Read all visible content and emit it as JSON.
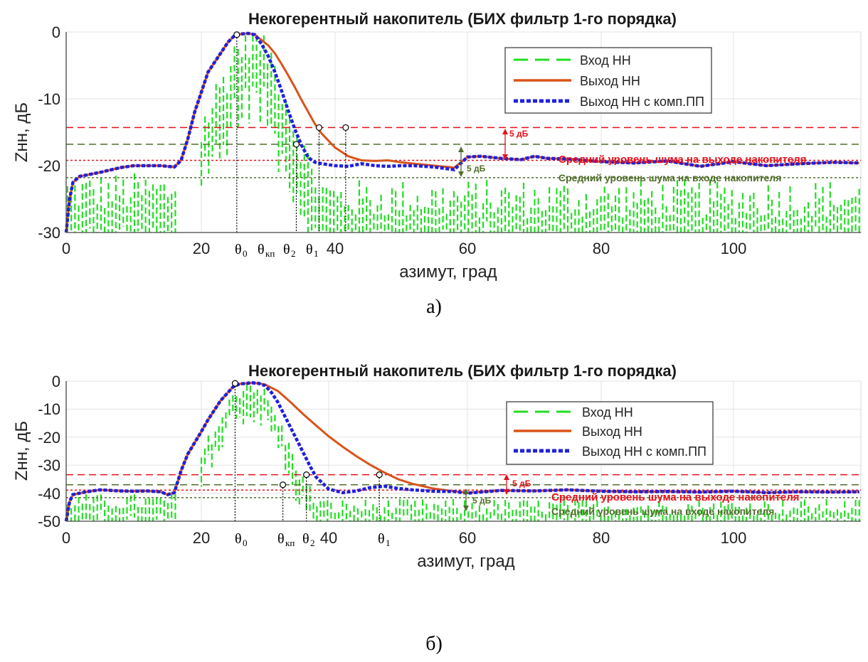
{
  "chart_data": [
    {
      "type": "line",
      "panel": "a)",
      "title": "Некогерентный накопитель (БИХ фильтр 1-го порядка)",
      "xlabel": "азимут, град",
      "ylabel": "Zнн, дБ",
      "xlim": [
        0,
        119
      ],
      "ylim": [
        -30,
        0
      ],
      "xticks": [
        0,
        20,
        40,
        60,
        80,
        100
      ],
      "xtick_labels": [
        "0",
        "20",
        "40",
        "60",
        "80",
        "100"
      ],
      "yticks": [
        0,
        -10,
        -20,
        -30
      ],
      "ytick_labels": [
        "0",
        "-10",
        "-20",
        "-30"
      ],
      "grid": true,
      "legend_position": "top-right",
      "series": [
        {
          "name": "Вход НН",
          "style": "dashed",
          "color": "#22dd22",
          "description_points_x": [
            0,
            5,
            10,
            15,
            17,
            18,
            20,
            22,
            24,
            25,
            27,
            28,
            30,
            32,
            34,
            36,
            38,
            40,
            45,
            50,
            55,
            60,
            70,
            80,
            90,
            100,
            110,
            119
          ],
          "description_points_y": [
            -24,
            -24,
            -24,
            -24,
            -23,
            -17,
            -15,
            -10,
            -6,
            -3,
            -1,
            -0.5,
            -3,
            -8,
            -14,
            -20,
            -24,
            -25,
            -25,
            -25,
            -25,
            -25,
            -25,
            -25,
            -25,
            -25,
            -25,
            -25
          ]
        },
        {
          "name": "Выход НН",
          "style": "solid",
          "color": "#d95319",
          "x": [
            0,
            0.5,
            1,
            2,
            3,
            5,
            8,
            10,
            12,
            14,
            16,
            17,
            18,
            19,
            20,
            21,
            22,
            23,
            24,
            25,
            26,
            27,
            28,
            29,
            30,
            31,
            32,
            33,
            34,
            35,
            36,
            37,
            38,
            40,
            42,
            44,
            46,
            48,
            50,
            52,
            55,
            58,
            60,
            62,
            65,
            68,
            70,
            72,
            75,
            80,
            85,
            90,
            95,
            100,
            105,
            110,
            115,
            119
          ],
          "y": [
            -30,
            -25,
            -22.5,
            -21.6,
            -21.4,
            -21,
            -20.3,
            -20,
            -20,
            -20,
            -20.2,
            -19.2,
            -16,
            -12,
            -9,
            -6,
            -4.5,
            -3,
            -1.5,
            -0.5,
            -0.3,
            -0.2,
            -0.4,
            -1.2,
            -2,
            -3.2,
            -4.8,
            -6.5,
            -8.3,
            -10.2,
            -12,
            -13.8,
            -15.2,
            -17.3,
            -18.6,
            -19.2,
            -19.3,
            -19.2,
            -19.5,
            -19.7,
            -20,
            -20.3,
            -18.7,
            -18.6,
            -18.9,
            -19.1,
            -18.6,
            -18.9,
            -19,
            -19.4,
            -19.6,
            -19.3,
            -20.1,
            -19.4,
            -20,
            -19.7,
            -19.5,
            -19.6
          ]
        },
        {
          "name": "Выход НН с комп.ПП",
          "style": "dotted",
          "color": "#1f1fe0",
          "x": [
            0,
            0.5,
            1,
            2,
            3,
            5,
            8,
            10,
            12,
            14,
            16,
            17,
            18,
            19,
            20,
            21,
            22,
            23,
            24,
            25,
            26,
            27,
            28,
            29,
            30,
            31,
            32,
            33,
            34,
            35,
            36,
            37,
            38,
            40,
            42,
            44,
            46,
            48,
            50,
            52,
            55,
            58,
            60,
            62,
            65,
            68,
            70,
            72,
            75,
            80,
            85,
            90,
            95,
            100,
            105,
            110,
            115,
            119
          ],
          "y": [
            -30,
            -25,
            -22.5,
            -21.6,
            -21.4,
            -21,
            -20.3,
            -20,
            -20,
            -20,
            -20.2,
            -19.2,
            -16,
            -12,
            -9,
            -6,
            -4.5,
            -3,
            -1.5,
            -0.5,
            -0.3,
            -0.2,
            -0.4,
            -1.8,
            -3.6,
            -6,
            -8.8,
            -11.8,
            -14.6,
            -17,
            -18.8,
            -19.5,
            -19.7,
            -20,
            -20.1,
            -19.7,
            -20,
            -20.1,
            -20,
            -20,
            -20.2,
            -20.6,
            -18.7,
            -18.6,
            -18.9,
            -19.1,
            -18.6,
            -18.9,
            -19,
            -19.4,
            -19.6,
            -19.3,
            -20.1,
            -19.4,
            -20,
            -19.7,
            -19.5,
            -19.6
          ]
        }
      ],
      "reference_lines": [
        {
          "y": -14.3,
          "style": "dashed",
          "color": "#e8101a"
        },
        {
          "y": -16.8,
          "style": "dashed",
          "color": "#4f6d2a"
        },
        {
          "y": -19.2,
          "style": "dotted",
          "color": "#e8101a"
        },
        {
          "y": -21.8,
          "style": "dotted",
          "color": "#4f6d2a"
        }
      ],
      "annotations": {
        "output_noise": "Средний уровень шума на выходе накопителя",
        "input_noise": "Средний уровень шума на входе накопителя",
        "db5_red": "5 дБ",
        "db5_olive": "5 дБ"
      },
      "markers": [
        {
          "label": "θ0",
          "x": 25.3,
          "y": -0.4
        },
        {
          "label": "θкп",
          "x": 34.2,
          "y": -16.8
        },
        {
          "label": "θ2",
          "x": 37.6,
          "y": -14.3
        },
        {
          "label": "θ1",
          "x": 41.6,
          "y": -14.3
        }
      ]
    },
    {
      "type": "line",
      "panel": "б)",
      "title": "Некогерентный накопитель (БИХ фильтр 1-го порядка)",
      "xlabel": "азимут, град",
      "ylabel": "Zнн, дБ",
      "xlim": [
        0,
        119
      ],
      "ylim": [
        -50,
        0
      ],
      "xticks": [
        0,
        20,
        40,
        60,
        80,
        100
      ],
      "xtick_labels": [
        "0",
        "20",
        "40",
        "60",
        "80",
        "100"
      ],
      "yticks": [
        0,
        -10,
        -20,
        -30,
        -40,
        -50
      ],
      "ytick_labels": [
        "0",
        "-10",
        "-20",
        "-30",
        "-40",
        "-50"
      ],
      "grid": true,
      "legend_position": "top-right",
      "series": [
        {
          "name": "Вход НН",
          "style": "dashed",
          "color": "#22dd22"
        },
        {
          "name": "Выход НН",
          "style": "solid",
          "color": "#d95319",
          "x": [
            0,
            0.5,
            1,
            2,
            3,
            5,
            8,
            10,
            12,
            14,
            15,
            16,
            17,
            18,
            19,
            20,
            21,
            22,
            23,
            24,
            25,
            26,
            27,
            28,
            29,
            30,
            32,
            34,
            36,
            38,
            40,
            42,
            44,
            46,
            48,
            50,
            52,
            55,
            58,
            60,
            65,
            70,
            75,
            80,
            85,
            90,
            95,
            100,
            105,
            110,
            115,
            119
          ],
          "y": [
            -50,
            -43,
            -40.5,
            -40,
            -39.5,
            -38.8,
            -39.2,
            -39.3,
            -39.2,
            -39.5,
            -40.5,
            -39.8,
            -32,
            -26,
            -22,
            -18,
            -14,
            -10.5,
            -7,
            -4.5,
            -2,
            -1,
            -0.8,
            -0.6,
            -0.8,
            -1.2,
            -3.5,
            -7.5,
            -11.8,
            -15.8,
            -19.7,
            -23.4,
            -26.8,
            -29.9,
            -32.6,
            -35,
            -36.6,
            -38.3,
            -39.3,
            -39.8,
            -39,
            -39.2,
            -38.8,
            -39.3,
            -39.5,
            -39.4,
            -39.6,
            -39.3,
            -39.8,
            -39.5,
            -39.6,
            -39.5
          ]
        },
        {
          "name": "Выход НН с комп.ПП",
          "style": "dotted",
          "color": "#1f1fe0",
          "x": [
            0,
            0.5,
            1,
            2,
            3,
            5,
            8,
            10,
            12,
            14,
            15,
            16,
            17,
            18,
            19,
            20,
            21,
            22,
            23,
            24,
            25,
            26,
            27,
            28,
            29,
            30,
            31,
            32,
            33,
            34,
            35,
            36,
            37,
            38,
            40,
            42,
            44,
            46,
            48,
            50,
            52,
            55,
            58,
            60,
            65,
            70,
            75,
            80,
            85,
            90,
            95,
            100,
            105,
            110,
            115,
            119
          ],
          "y": [
            -50,
            -43,
            -40.5,
            -40,
            -39.5,
            -38.8,
            -39.2,
            -39.3,
            -39.2,
            -39.5,
            -40.5,
            -39.8,
            -32,
            -26,
            -22,
            -18,
            -14,
            -10.5,
            -7,
            -4.5,
            -2,
            -1,
            -0.8,
            -0.6,
            -0.8,
            -1.6,
            -4,
            -7.5,
            -12,
            -16.5,
            -21,
            -25.5,
            -30,
            -34.2,
            -38.5,
            -39.8,
            -39.2,
            -38,
            -37.5,
            -38.3,
            -38.8,
            -39.3,
            -39.4,
            -40,
            -39,
            -39.2,
            -38.8,
            -39.3,
            -39.5,
            -39.4,
            -39.6,
            -39.3,
            -39.8,
            -39.5,
            -39.6,
            -39.5
          ]
        }
      ],
      "reference_lines": [
        {
          "y": -33.4,
          "style": "dashed",
          "color": "#e8101a"
        },
        {
          "y": -37,
          "style": "dashed",
          "color": "#4f6d2a"
        },
        {
          "y": -38.9,
          "style": "dotted",
          "color": "#e8101a"
        },
        {
          "y": -41.6,
          "style": "dotted",
          "color": "#4f6d2a"
        }
      ],
      "annotations": {
        "output_noise": "Средний уровень шума на выходе накопителя",
        "input_noise": "Средний уровень шума на входе накопителя",
        "db5_red": "5 дБ",
        "db5_olive": "5 дБ"
      },
      "markers": [
        {
          "label": "θ0",
          "x": 25.3,
          "y": -0.8
        },
        {
          "label": "θкп",
          "x": 32.8,
          "y": -37
        },
        {
          "label": "θ2",
          "x": 36.5,
          "y": -33.4
        },
        {
          "label": "θ1",
          "x": 47.3,
          "y": -33.4
        }
      ]
    }
  ],
  "legend": {
    "input": "Вход НН",
    "output": "Выход НН",
    "output_comp": "Выход НН с комп.ПП"
  },
  "theta_labels": {
    "t0": "θ",
    "t0_sub": "0",
    "tkp": "θ",
    "tkp_sub": "кп",
    "t2": "θ",
    "t2_sub": "2",
    "t1": "θ",
    "t1_sub": "1"
  },
  "colors": {
    "input": "#22dd22",
    "output": "#d95319",
    "output_comp": "#1f1fe0",
    "red_annotation": "#e8101a",
    "olive_annotation": "#4f6d2a"
  }
}
